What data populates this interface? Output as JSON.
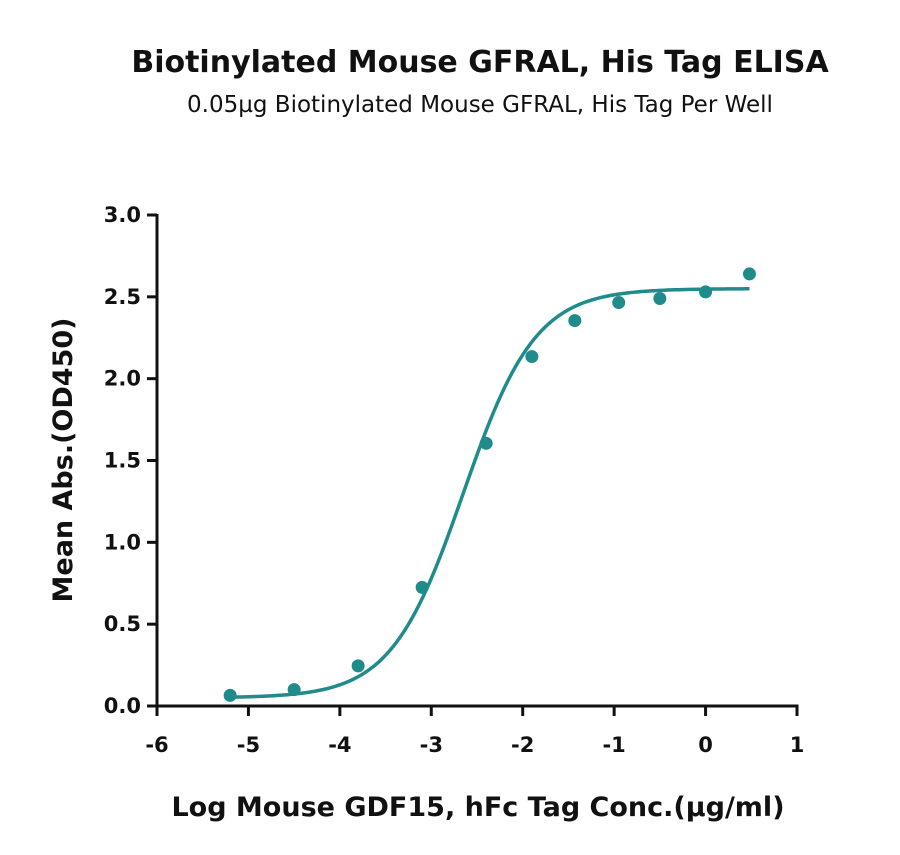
{
  "chart_data": {
    "type": "scatter",
    "title": "Biotinylated Mouse GFRAL, His Tag ELISA",
    "subtitle": "0.05µg Biotinylated Mouse GFRAL, His Tag Per Well",
    "xlabel": "Log Mouse GDF15, hFc Tag Conc.(µg/ml)",
    "ylabel": "Mean Abs.(OD450)",
    "xlim": [
      -6,
      1
    ],
    "ylim": [
      0,
      3.0
    ],
    "xticks": [
      -6,
      -5,
      -4,
      -3,
      -2,
      -1,
      0,
      1
    ],
    "yticks": [
      0.0,
      0.5,
      1.0,
      1.5,
      2.0,
      2.5,
      3.0
    ],
    "xtick_labels": [
      "-6",
      "-5",
      "-4",
      "-3",
      "-2",
      "-1",
      "0",
      "1"
    ],
    "ytick_labels": [
      "0.0",
      "0.5",
      "1.0",
      "1.5",
      "2.0",
      "2.5",
      "3.0"
    ],
    "grid": false,
    "color": "#1f8b8b",
    "series": [
      {
        "x": [
          -5.2,
          -4.5,
          -3.8,
          -3.1,
          -2.4,
          -1.9,
          -1.43,
          -0.95,
          -0.5,
          0.0,
          0.48
        ],
        "y": [
          0.065,
          0.1,
          0.245,
          0.725,
          1.605,
          2.135,
          2.355,
          2.465,
          2.49,
          2.53,
          2.64
        ]
      }
    ],
    "fit": {
      "model": "4PL",
      "bottom": 0.05,
      "top": 2.55,
      "logEC50": -2.65,
      "hill": 1.1
    }
  }
}
